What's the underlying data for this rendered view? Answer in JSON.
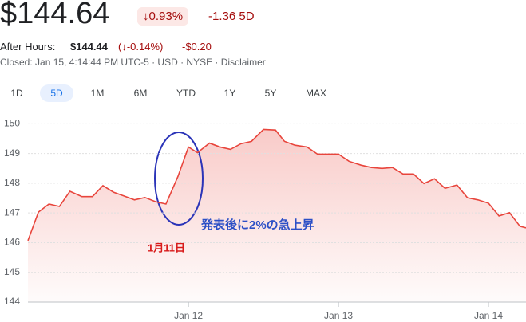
{
  "header": {
    "price": "$144.64",
    "change_pct": "↓0.93%",
    "change": "-1.36",
    "period": "5D",
    "after_hours_label": "After Hours:",
    "after_hours_price": "$144.44",
    "after_hours_pct": "(↓-0.14%)",
    "after_hours_change": "-$0.20",
    "status": "Closed: Jan 15, 4:14:44 PM UTC-5 · USD · NYSE · Disclaimer"
  },
  "ranges": [
    "1D",
    "5D",
    "1M",
    "6M",
    "YTD",
    "1Y",
    "5Y",
    "MAX"
  ],
  "selected_range": "5D",
  "chart_data": {
    "type": "line",
    "color": "#e8453c",
    "x": [
      10.93,
      11.0,
      11.07,
      11.14,
      11.21,
      11.29,
      11.36,
      11.43,
      11.5,
      11.57,
      11.64,
      11.71,
      11.78,
      11.85,
      11.93,
      12.0,
      12.06,
      12.14,
      12.21,
      12.28,
      12.35,
      12.42,
      12.5,
      12.58,
      12.64,
      12.71,
      12.79,
      12.86,
      12.93,
      13.0,
      13.07,
      13.15,
      13.22,
      13.29,
      13.36,
      13.43,
      13.5,
      13.57,
      13.64,
      13.71,
      13.79,
      13.86,
      13.93,
      14.0,
      14.07,
      14.14,
      14.21,
      14.25
    ],
    "values": [
      146.07,
      147.03,
      147.3,
      147.22,
      147.73,
      147.55,
      147.55,
      147.92,
      147.7,
      147.57,
      147.44,
      147.52,
      147.38,
      147.3,
      148.23,
      149.22,
      149.03,
      149.35,
      149.22,
      149.14,
      149.33,
      149.41,
      149.81,
      149.79,
      149.41,
      149.28,
      149.22,
      148.98,
      148.98,
      148.98,
      148.74,
      148.61,
      148.53,
      148.5,
      148.53,
      148.31,
      148.31,
      147.99,
      148.15,
      147.83,
      147.94,
      147.51,
      147.44,
      147.33,
      146.9,
      147.01,
      146.55,
      146.5
    ],
    "xlim": [
      10.93,
      14.25
    ],
    "ylim": [
      144,
      150.6
    ],
    "yticks": [
      144,
      145,
      146,
      147,
      148,
      149,
      150
    ],
    "xticks": [
      {
        "value": 12,
        "label": "Jan 12"
      },
      {
        "value": 13,
        "label": "Jan 13"
      },
      {
        "value": 14,
        "label": "Jan 14"
      }
    ],
    "grid": true,
    "annotations": [
      "発表後に2%の急上昇",
      "1月11日"
    ]
  }
}
